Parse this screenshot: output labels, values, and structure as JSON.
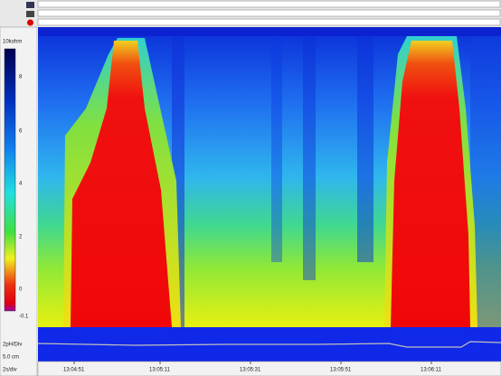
{
  "colorbar": {
    "unit": "10kohm",
    "labels": [
      "8",
      "6",
      "4",
      "2",
      "0",
      "-0.1"
    ]
  },
  "side_panel": {
    "scale": "2pH/Div",
    "position": "5.0 cm",
    "timebase": "2s/div"
  },
  "time_axis": {
    "labels": [
      "13:04:51",
      "13:05:11",
      "13:05:31",
      "13:05:51",
      "13:06:11"
    ]
  }
}
